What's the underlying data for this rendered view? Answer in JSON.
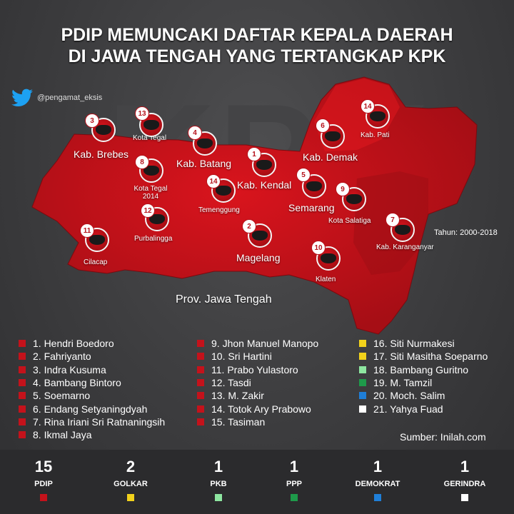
{
  "title_line1": "PDIP MEMUNCAKI DAFTAR KEPALA DAERAH",
  "title_line2": "DI JAWA TENGAH YANG TERTANGKAP KPK",
  "watermark": "KPK",
  "twitter_handle": "@pengamat_eksis",
  "map_labels": {
    "brebes": "Kab. Brebes",
    "kota_tegal": "Kota Tegal",
    "kota_tegal_2014_a": "Kota Tegal",
    "kota_tegal_2014_b": "2014",
    "batang": "Kab. Batang",
    "temenggung": "Temenggung",
    "kendal": "Kab. Kendal",
    "demak": "Kab. Demak",
    "semarang": "Semarang",
    "salatiga": "Kota Salatiga",
    "pati": "Kab. Pati",
    "karanganyar": "Kab. Karanganyar",
    "purbalingga": "Purbalingga",
    "cilacap": "Cilacap",
    "magelang": "Magelang",
    "klaten": "Klaten",
    "province": "Prov. Jawa Tengah"
  },
  "pins": [
    "3",
    "13",
    "8",
    "4",
    "14",
    "1",
    "12",
    "11",
    "2",
    "6",
    "5",
    "9",
    "10",
    "7",
    "14"
  ],
  "period": "Tahun: 2000-2018",
  "legend": {
    "col1": [
      "1. Hendri Boedoro",
      "2. Fahriyanto",
      "3. Indra Kusuma",
      "4. Bambang Bintoro",
      "5. Soemarno",
      "6. Endang Setyaningdyah",
      "7. Rina Iriani Sri Ratnaningsih",
      "8. Ikmal Jaya"
    ],
    "col2": [
      "9. Jhon Manuel Manopo",
      "10. Sri Hartini",
      "11. Prabo Yulastoro",
      "12. Tasdi",
      "13. M. Zakir",
      "14. Totok Ary Prabowo",
      "15. Tasiman"
    ],
    "col3": [
      "16. Siti Nurmakesi",
      "17. Siti Masitha Soeparno",
      "18. Bambang Guritno",
      "19. M. Tamzil",
      "20. Moch. Salim",
      "21. Yahya Fuad"
    ],
    "col3_colors": [
      "#f2d21b",
      "#f2d21b",
      "#8ee6a0",
      "#1e9a4a",
      "#1f7fd8",
      "#ffffff"
    ]
  },
  "source": "Sumber: Inilah.com",
  "parties": [
    {
      "count": "15",
      "name": "PDIP",
      "color": "#c4121b"
    },
    {
      "count": "2",
      "name": "GOLKAR",
      "color": "#f2d21b"
    },
    {
      "count": "1",
      "name": "PKB",
      "color": "#8ee6a0"
    },
    {
      "count": "1",
      "name": "PPP",
      "color": "#1e9a4a"
    },
    {
      "count": "1",
      "name": "DEMOKRAT",
      "color": "#1f7fd8"
    },
    {
      "count": "1",
      "name": "GERINDRA",
      "color": "#ffffff"
    }
  ],
  "colors": {
    "pdip_red": "#c4121b",
    "map_red": "#d3131c"
  }
}
